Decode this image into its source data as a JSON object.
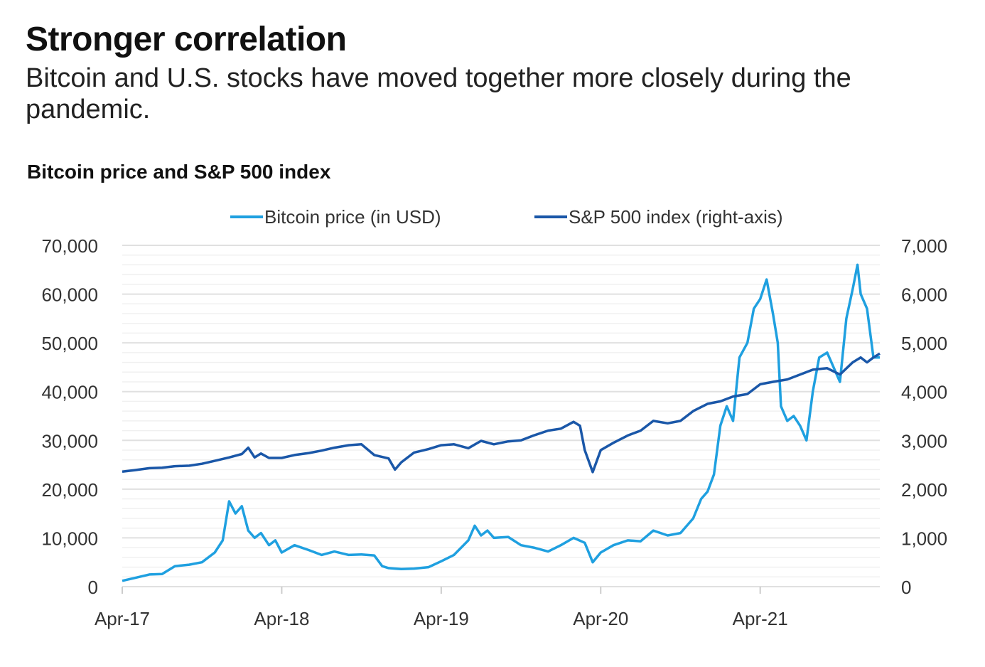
{
  "header": {
    "title": "Stronger correlation",
    "subtitle": "Bitcoin and U.S. stocks have moved together more closely during the pandemic."
  },
  "chart_data": {
    "type": "line",
    "title": "Bitcoin price and S&P 500 index",
    "legend_placement": "top-center",
    "grid": true,
    "colors": {
      "bitcoin": "#1fa0e0",
      "sp500": "#1a57a8",
      "grid_major": "#e0e0e0",
      "grid_minor": "#f0f0f0"
    },
    "x_ticks": [
      "Apr-17",
      "Apr-18",
      "Apr-19",
      "Apr-20",
      "Apr-21"
    ],
    "x_range_years": [
      2017.25,
      2022.0
    ],
    "left_axis": {
      "label": "Bitcoin price (in USD)",
      "ylim": [
        0,
        70000
      ],
      "ticks": [
        "0",
        "10,000",
        "20,000",
        "30,000",
        "40,000",
        "50,000",
        "60,000",
        "70,000"
      ]
    },
    "right_axis": {
      "label": "S&P 500 index (right-axis)",
      "ylim": [
        0,
        7000
      ],
      "ticks": [
        "0",
        "1,000",
        "2,000",
        "3,000",
        "4,000",
        "5,000",
        "6,000",
        "7,000"
      ]
    },
    "series": [
      {
        "name": "Bitcoin price (in USD)",
        "axis": "left",
        "x": [
          2017.25,
          2017.33,
          2017.42,
          2017.5,
          2017.58,
          2017.67,
          2017.75,
          2017.83,
          2017.88,
          2017.92,
          2017.96,
          2018.0,
          2018.04,
          2018.08,
          2018.12,
          2018.17,
          2018.21,
          2018.25,
          2018.33,
          2018.42,
          2018.5,
          2018.58,
          2018.67,
          2018.75,
          2018.83,
          2018.88,
          2018.92,
          2018.96,
          2019.0,
          2019.08,
          2019.17,
          2019.25,
          2019.33,
          2019.42,
          2019.46,
          2019.5,
          2019.54,
          2019.58,
          2019.67,
          2019.75,
          2019.83,
          2019.92,
          2020.0,
          2020.08,
          2020.15,
          2020.2,
          2020.25,
          2020.33,
          2020.42,
          2020.5,
          2020.58,
          2020.67,
          2020.75,
          2020.83,
          2020.88,
          2020.92,
          2020.96,
          2021.0,
          2021.04,
          2021.08,
          2021.12,
          2021.17,
          2021.21,
          2021.25,
          2021.29,
          2021.33,
          2021.36,
          2021.38,
          2021.42,
          2021.46,
          2021.5,
          2021.54,
          2021.58,
          2021.62,
          2021.67,
          2021.71,
          2021.75,
          2021.79,
          2021.83,
          2021.86,
          2021.88,
          2021.92,
          2021.96,
          2022.0
        ],
        "values": [
          1200,
          1800,
          2500,
          2600,
          4200,
          4500,
          5000,
          7000,
          9500,
          17500,
          15000,
          16500,
          11500,
          10000,
          11000,
          8500,
          9500,
          7000,
          8500,
          7500,
          6500,
          7200,
          6500,
          6600,
          6400,
          4200,
          3800,
          3700,
          3600,
          3700,
          4000,
          5200,
          6500,
          9500,
          12500,
          10500,
          11500,
          10000,
          10200,
          8500,
          8000,
          7200,
          8500,
          10000,
          9000,
          5000,
          7000,
          8500,
          9500,
          9300,
          11500,
          10500,
          11000,
          14000,
          18000,
          19500,
          23000,
          33000,
          37000,
          34000,
          47000,
          50000,
          57000,
          59000,
          63000,
          56000,
          50000,
          37000,
          34000,
          35000,
          33000,
          30000,
          40000,
          47000,
          48000,
          45000,
          42000,
          55000,
          61000,
          66000,
          60000,
          57000,
          47000,
          47000
        ]
      },
      {
        "name": "S&P 500 index (right-axis)",
        "axis": "right",
        "x": [
          2017.25,
          2017.33,
          2017.42,
          2017.5,
          2017.58,
          2017.67,
          2017.75,
          2017.83,
          2017.92,
          2018.0,
          2018.04,
          2018.08,
          2018.12,
          2018.17,
          2018.25,
          2018.33,
          2018.42,
          2018.5,
          2018.58,
          2018.67,
          2018.75,
          2018.83,
          2018.92,
          2018.96,
          2019.0,
          2019.08,
          2019.17,
          2019.25,
          2019.33,
          2019.42,
          2019.5,
          2019.58,
          2019.67,
          2019.75,
          2019.83,
          2019.92,
          2020.0,
          2020.08,
          2020.12,
          2020.15,
          2020.2,
          2020.25,
          2020.33,
          2020.42,
          2020.5,
          2020.58,
          2020.67,
          2020.75,
          2020.83,
          2020.92,
          2021.0,
          2021.08,
          2021.17,
          2021.25,
          2021.33,
          2021.42,
          2021.5,
          2021.58,
          2021.67,
          2021.75,
          2021.83,
          2021.88,
          2021.92,
          2021.96,
          2022.0
        ],
        "values": [
          2360,
          2390,
          2430,
          2440,
          2470,
          2480,
          2520,
          2580,
          2650,
          2720,
          2850,
          2650,
          2730,
          2640,
          2640,
          2700,
          2740,
          2790,
          2850,
          2900,
          2920,
          2700,
          2630,
          2400,
          2550,
          2750,
          2820,
          2900,
          2920,
          2840,
          2990,
          2920,
          2980,
          3000,
          3100,
          3200,
          3240,
          3380,
          3300,
          2800,
          2350,
          2800,
          2950,
          3100,
          3200,
          3400,
          3350,
          3400,
          3600,
          3750,
          3800,
          3900,
          3950,
          4150,
          4200,
          4250,
          4350,
          4450,
          4480,
          4350,
          4600,
          4700,
          4600,
          4700,
          4780
        ]
      }
    ]
  }
}
